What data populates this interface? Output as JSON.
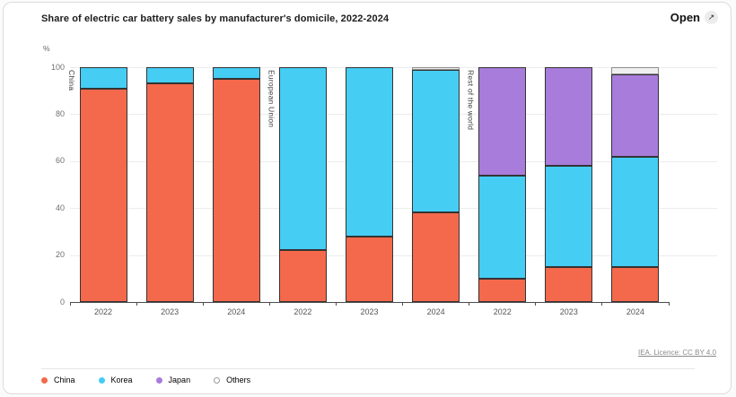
{
  "header": {
    "title": "Share of electric car battery sales by manufacturer's domicile, 2022-2024",
    "open_label": "Open",
    "open_icon_glyph": "↗"
  },
  "footer": {
    "attribution": "IEA. Licence: CC BY 4.0"
  },
  "chart_data": {
    "type": "bar",
    "variant": "stacked-percent",
    "title": "Share of electric car battery sales by manufacturer's domicile, 2022-2024",
    "ylabel": "%",
    "ylim": [
      0,
      100
    ],
    "yticks": [
      0,
      20,
      40,
      60,
      80,
      100
    ],
    "grid": true,
    "legend_position": "bottom-left",
    "categories": [
      "2022",
      "2023",
      "2024",
      "2022",
      "2023",
      "2024",
      "2022",
      "2023",
      "2024"
    ],
    "groups": [
      {
        "label": "China",
        "start": 0,
        "count": 3
      },
      {
        "label": "European Union",
        "start": 3,
        "count": 3
      },
      {
        "label": "Rest of the world",
        "start": 6,
        "count": 3
      }
    ],
    "series": [
      {
        "name": "China",
        "color": "#f4694b",
        "border": "#333333",
        "values": [
          91,
          93,
          95,
          22,
          28,
          38,
          10,
          15,
          15
        ]
      },
      {
        "name": "Korea",
        "color": "#45cdf4",
        "border": "#333333",
        "values": [
          9,
          7,
          5,
          78,
          72,
          61,
          44,
          43,
          47
        ]
      },
      {
        "name": "Japan",
        "color": "#a87cdb",
        "border": "#333333",
        "values": [
          0,
          0,
          0,
          0,
          0,
          0,
          46,
          42,
          35
        ]
      },
      {
        "name": "Others",
        "color": "#f0f0f0",
        "border": "#8c8c8c",
        "values": [
          0,
          0,
          0,
          0,
          0,
          1,
          0,
          0,
          3
        ]
      }
    ]
  }
}
